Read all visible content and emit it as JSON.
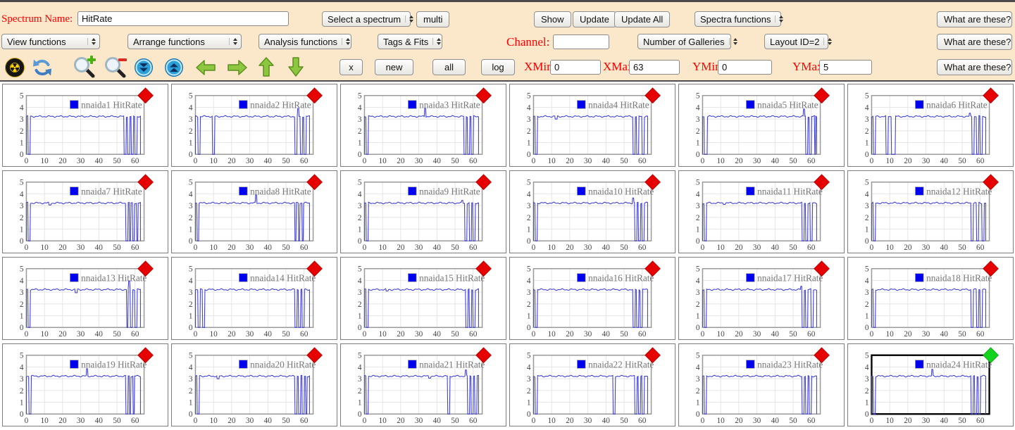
{
  "colors": {
    "toolbar_bg": "#fbe7ca",
    "top_border": "#4a4a4a",
    "label_red": "#ff0000",
    "line_blue": "#4040d8",
    "legend_square_blue": "#0000f0",
    "marker_red": "#e60000",
    "marker_green": "#12d41f",
    "grid_line": "#e4e4e4",
    "axis_border": "#999999",
    "axis_text": "#444444",
    "legend_text": "#777777",
    "cell_border": "#7d7d7d"
  },
  "toolbar": {
    "row1": {
      "spectrum_name_label": "Spectrum Name:",
      "spectrum_name_value": "HitRate",
      "select_spectrum_label": "Select a spectrum",
      "multi_label": "multi",
      "show_label": "Show",
      "update_label": "Update",
      "update_all_label": "Update All",
      "spectra_functions_label": "Spectra functions",
      "what_are_these_label": "What are these?"
    },
    "row2": {
      "view_functions_label": "View functions",
      "arrange_functions_label": "Arrange functions",
      "analysis_functions_label": "Analysis functions",
      "tags_fits_label": "Tags & Fits",
      "channel_label": "Channel:",
      "channel_value": "",
      "number_of_galleries_label": "Number of Galleries",
      "layout_id_label": "Layout ID=2",
      "what_are_these_label": "What are these?"
    },
    "row3": {
      "icons": [
        "radiation-icon",
        "refresh-icon",
        "zoom-in-icon",
        "zoom-out-icon",
        "double-arrow-down-icon",
        "double-arrow-up-icon",
        "arrow-left-icon",
        "arrow-right-icon",
        "arrow-up-icon",
        "arrow-down-icon"
      ],
      "x_label": "x",
      "new_label": "new",
      "all_label": "all",
      "log_label": "log",
      "xmin_label": "XMin",
      "xmin_value": "0",
      "xmax_label": "XMax",
      "xmax_value": "63",
      "ymin_label": "YMin",
      "ymin_value": "0",
      "ymax_label": "YMax",
      "ymax_value": "5",
      "what_are_these_label": "What are these?"
    }
  },
  "chart_defaults": {
    "type": "line",
    "x_ticks": [
      0,
      10,
      20,
      30,
      40,
      50,
      60
    ],
    "y_ticks": [
      0,
      1,
      2,
      3,
      4,
      5
    ],
    "xlim": [
      0,
      65
    ],
    "ylim": [
      0,
      5
    ],
    "x_range_shown": [
      0,
      63
    ],
    "baseline": 3.22,
    "legend_suffix": "HitRate"
  },
  "charts": [
    {
      "name": "nnaida1",
      "legend": "nnaida1 HitRate",
      "marker": "red",
      "selected": false,
      "dips": [
        [
          1,
          2
        ],
        [
          54,
          55
        ],
        [
          56,
          57
        ],
        [
          58,
          59
        ],
        [
          60,
          61
        ]
      ]
    },
    {
      "name": "nnaida2",
      "legend": "nnaida2 HitRate",
      "marker": "red",
      "selected": false,
      "dips": [
        [
          1.5,
          2.5
        ],
        [
          9.5,
          10.5
        ],
        [
          55,
          56
        ],
        [
          58,
          59
        ],
        [
          60,
          61
        ]
      ],
      "spikes": [
        [
          56.8,
          3.9
        ]
      ]
    },
    {
      "name": "nnaida3",
      "legend": "nnaida3 HitRate",
      "marker": "red",
      "selected": false,
      "dips": [
        [
          1,
          2
        ],
        [
          55,
          56
        ],
        [
          57,
          58
        ],
        [
          59,
          60
        ]
      ],
      "spikes": [
        [
          33.5,
          3.9
        ]
      ]
    },
    {
      "name": "nnaida4",
      "legend": "nnaida4 HitRate",
      "marker": "red",
      "selected": false,
      "dips": [
        [
          1,
          2
        ],
        [
          55,
          56
        ],
        [
          57,
          58
        ],
        [
          60,
          61
        ]
      ],
      "notches": [
        [
          12.5,
          3.0
        ]
      ]
    },
    {
      "name": "nnaida5",
      "legend": "nnaida5 HitRate",
      "marker": "red",
      "selected": false,
      "dips": [
        [
          1,
          2.5
        ],
        [
          57,
          58
        ],
        [
          59,
          60
        ],
        [
          61.8,
          62.4
        ]
      ],
      "spikes": [
        [
          56,
          3.85
        ]
      ]
    },
    {
      "name": "nnaida6",
      "legend": "nnaida6 HitRate",
      "marker": "red",
      "selected": false,
      "dips": [
        [
          1,
          2
        ],
        [
          8,
          9
        ],
        [
          11,
          13
        ],
        [
          55.5,
          56.5
        ],
        [
          58,
          59
        ],
        [
          60,
          61
        ]
      ],
      "spikes": [
        [
          54.3,
          3.5
        ]
      ]
    },
    {
      "name": "nnaida7",
      "legend": "nnaida7 HitRate",
      "marker": "red",
      "selected": false,
      "dips": [
        [
          1,
          2
        ],
        [
          55,
          56
        ],
        [
          57,
          57.6
        ],
        [
          58.6,
          59.6
        ],
        [
          61,
          61.6
        ]
      ],
      "notches": [
        [
          13,
          3.05
        ]
      ]
    },
    {
      "name": "nnaida8",
      "legend": "nnaida8 HitRate",
      "marker": "red",
      "selected": false,
      "dips": [
        [
          1,
          1.8
        ],
        [
          55,
          55.6
        ],
        [
          57,
          57.6
        ],
        [
          59,
          59.6
        ]
      ],
      "spikes": [
        [
          33.5,
          3.9
        ]
      ]
    },
    {
      "name": "nnaida9",
      "legend": "nnaida9 HitRate",
      "marker": "red",
      "selected": false,
      "dips": [
        [
          1,
          2
        ],
        [
          55.5,
          56.5
        ],
        [
          58,
          59
        ],
        [
          60,
          61
        ]
      ],
      "spikes": [
        [
          54,
          3.45
        ]
      ]
    },
    {
      "name": "nnaida10",
      "legend": "nnaida10 HitRate",
      "marker": "red",
      "selected": false,
      "dips": [
        [
          1,
          2
        ],
        [
          56,
          57
        ],
        [
          58,
          59
        ],
        [
          60,
          61
        ]
      ],
      "spikes": [
        [
          55,
          3.65
        ]
      ]
    },
    {
      "name": "nnaida11",
      "legend": "nnaida11 HitRate",
      "marker": "red",
      "selected": false,
      "dips": [
        [
          1,
          2
        ],
        [
          55,
          56
        ],
        [
          57,
          58
        ],
        [
          59.5,
          60.5
        ]
      ],
      "notches": [
        [
          12,
          3.1
        ]
      ]
    },
    {
      "name": "nnaida12",
      "legend": "nnaida12 HitRate",
      "marker": "red",
      "selected": false,
      "dips": [
        [
          1,
          2
        ],
        [
          55,
          56
        ],
        [
          58,
          59
        ],
        [
          61,
          62
        ]
      ]
    },
    {
      "name": "nnaida13",
      "legend": "nnaida13 HitRate",
      "marker": "red",
      "selected": false,
      "dips": [
        [
          1,
          2
        ],
        [
          55.3,
          56
        ],
        [
          57.5,
          58.5
        ],
        [
          60,
          61
        ]
      ],
      "spikes": [
        [
          56.7,
          3.95
        ]
      ],
      "notches": [
        [
          27.5,
          2.95
        ]
      ]
    },
    {
      "name": "nnaida14",
      "legend": "nnaida14 HitRate",
      "marker": "red",
      "selected": false,
      "dips": [
        [
          1.5,
          2.5
        ],
        [
          4,
          5
        ],
        [
          55,
          56
        ],
        [
          57,
          58
        ],
        [
          59,
          60
        ]
      ]
    },
    {
      "name": "nnaida15",
      "legend": "nnaida15 HitRate",
      "marker": "red",
      "selected": false,
      "dips": [
        [
          1,
          2
        ],
        [
          56,
          57
        ],
        [
          58,
          59
        ],
        [
          60,
          61
        ]
      ],
      "notches": [
        [
          12.5,
          3.1
        ]
      ]
    },
    {
      "name": "nnaida16",
      "legend": "nnaida16 HitRate",
      "marker": "red",
      "selected": false,
      "dips": [
        [
          1,
          2
        ],
        [
          55,
          56
        ],
        [
          57,
          58
        ],
        [
          59,
          60
        ]
      ]
    },
    {
      "name": "nnaida17",
      "legend": "nnaida17 HitRate",
      "marker": "red",
      "selected": false,
      "dips": [
        [
          1,
          2
        ],
        [
          55,
          56
        ],
        [
          57,
          58
        ],
        [
          60,
          61
        ]
      ],
      "spikes": [
        [
          54.5,
          3.5
        ]
      ]
    },
    {
      "name": "nnaida18",
      "legend": "nnaida18 HitRate",
      "marker": "red",
      "selected": false,
      "dips": [
        [
          1,
          2
        ],
        [
          55,
          56
        ],
        [
          58,
          59
        ],
        [
          60,
          61
        ]
      ]
    },
    {
      "name": "nnaida19",
      "legend": "nnaida19 HitRate",
      "marker": "red",
      "selected": false,
      "dips": [
        [
          1.5,
          2.5
        ],
        [
          55,
          56
        ],
        [
          57,
          57.6
        ],
        [
          59,
          59.6
        ]
      ],
      "spikes": [
        [
          33.5,
          3.85
        ]
      ]
    },
    {
      "name": "nnaida20",
      "legend": "nnaida20 HitRate",
      "marker": "red",
      "selected": false,
      "dips": [
        [
          1,
          2
        ],
        [
          55,
          56
        ],
        [
          57,
          58
        ],
        [
          59,
          60
        ],
        [
          61,
          61.5
        ]
      ],
      "notches": [
        [
          12.5,
          3.0
        ]
      ]
    },
    {
      "name": "nnaida21",
      "legend": "nnaida21 HitRate",
      "marker": "red",
      "selected": false,
      "dips": [
        [
          0.8,
          2
        ],
        [
          46,
          47
        ],
        [
          57,
          58
        ],
        [
          59,
          60
        ],
        [
          61,
          62
        ]
      ],
      "spikes": [
        [
          56,
          3.75
        ]
      ],
      "notches": [
        [
          36,
          3.05
        ]
      ]
    },
    {
      "name": "nnaida22",
      "legend": "nnaida22 HitRate",
      "marker": "red",
      "selected": false,
      "dips": [
        [
          1,
          2
        ],
        [
          44,
          45
        ],
        [
          56,
          57
        ],
        [
          58,
          59
        ],
        [
          60,
          61
        ]
      ]
    },
    {
      "name": "nnaida23",
      "legend": "nnaida23 HitRate",
      "marker": "red",
      "selected": false,
      "dips": [
        [
          1,
          2
        ],
        [
          55,
          56
        ],
        [
          57,
          58
        ],
        [
          59,
          60
        ]
      ]
    },
    {
      "name": "nnaida24",
      "legend": "nnaida24 HitRate",
      "marker": "green",
      "selected": true,
      "dips": [
        [
          1,
          2
        ],
        [
          55,
          56
        ],
        [
          57,
          58
        ],
        [
          59,
          60
        ]
      ],
      "spikes": [
        [
          33.5,
          3.8
        ]
      ]
    }
  ]
}
